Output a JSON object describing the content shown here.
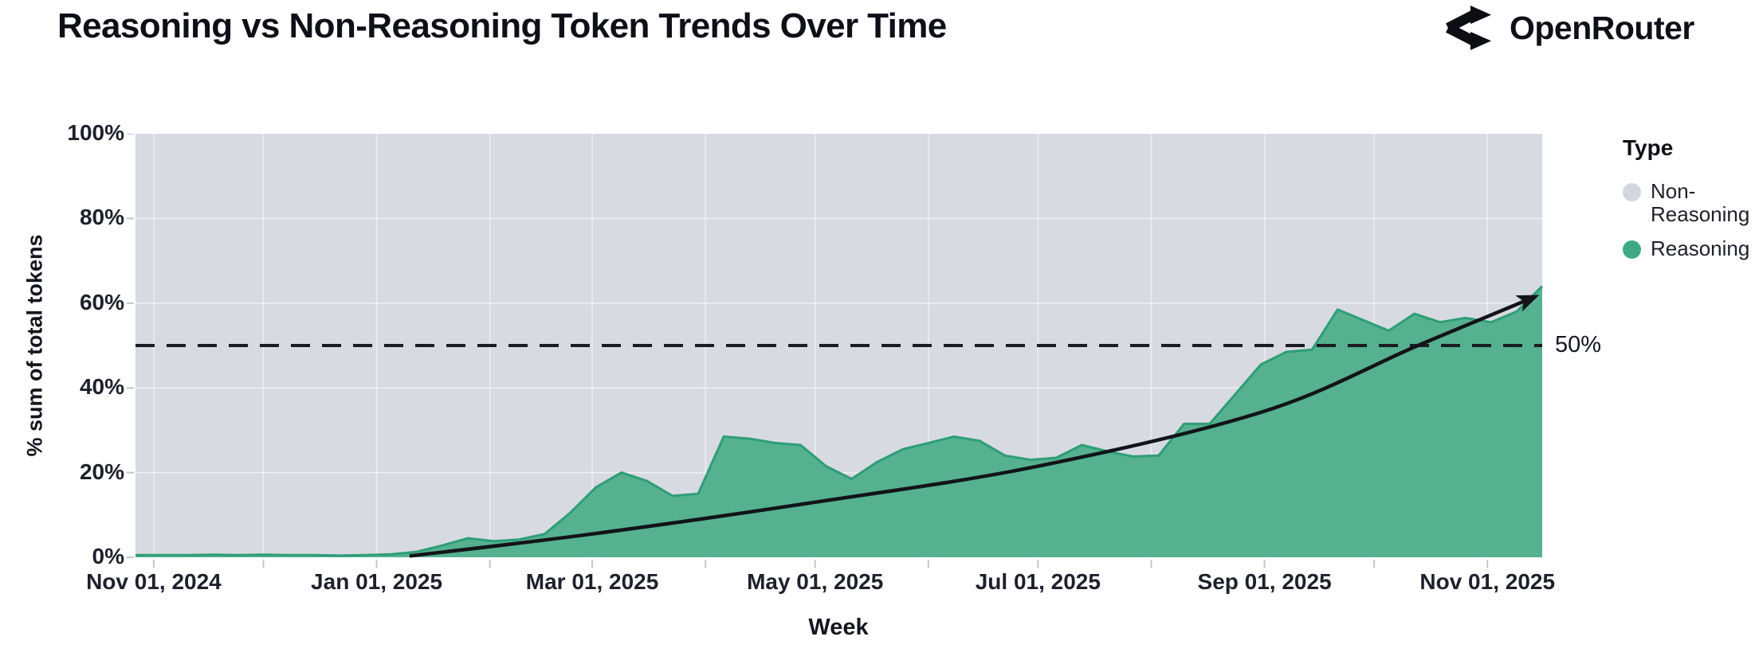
{
  "header": {
    "title": "Reasoning vs Non-Reasoning Token Trends Over Time",
    "brand": "OpenRouter"
  },
  "legend": {
    "title": "Type",
    "items": [
      {
        "label": "Non-Reasoning",
        "color": "#d3d6dd"
      },
      {
        "label": "Reasoning",
        "color": "#3fa984"
      }
    ]
  },
  "chart_data": {
    "type": "area",
    "stacked_percent": true,
    "title": "Reasoning vs Non-Reasoning Token Trends Over Time",
    "xlabel": "Week",
    "ylabel": "% sum of total tokens",
    "ylim": [
      0,
      100
    ],
    "grid": true,
    "legend_position": "right",
    "colors": {
      "plot_background_non_reasoning": "#d8dae2",
      "reasoning_fill": "#55b190",
      "reasoning_stroke": "#2e9e76",
      "gridline": "#ffffff",
      "tick_mark": "#c3c6cf",
      "annotation_line": "#1a1c22",
      "trend_line": "#121419",
      "text": "#14171f"
    },
    "x_domain": [
      "2024-10-27",
      "2025-11-16"
    ],
    "y_ticks": [
      {
        "value": 0,
        "label": "0%"
      },
      {
        "value": 20,
        "label": "20%"
      },
      {
        "value": 40,
        "label": "40%"
      },
      {
        "value": 60,
        "label": "60%"
      },
      {
        "value": 80,
        "label": "80%"
      },
      {
        "value": 100,
        "label": "100%"
      }
    ],
    "x_ticks": [
      {
        "date": "2024-11-01",
        "label": "Nov 01, 2024"
      },
      {
        "date": "2025-01-01",
        "label": "Jan 01, 2025"
      },
      {
        "date": "2025-03-01",
        "label": "Mar 01, 2025"
      },
      {
        "date": "2025-05-01",
        "label": "May 01, 2025"
      },
      {
        "date": "2025-07-01",
        "label": "Jul 01, 2025"
      },
      {
        "date": "2025-09-01",
        "label": "Sep 01, 2025"
      },
      {
        "date": "2025-11-01",
        "label": "Nov 01, 2025"
      }
    ],
    "x_grid_months": [
      "2024-11-01",
      "2024-12-01",
      "2025-01-01",
      "2025-02-01",
      "2025-03-01",
      "2025-04-01",
      "2025-05-01",
      "2025-06-01",
      "2025-07-01",
      "2025-08-01",
      "2025-09-01",
      "2025-10-01",
      "2025-11-01"
    ],
    "series": [
      {
        "name": "Reasoning",
        "unit": "% of total tokens",
        "x": [
          "2024-10-27",
          "2024-11-03",
          "2024-11-10",
          "2024-11-17",
          "2024-11-24",
          "2024-12-01",
          "2024-12-08",
          "2024-12-15",
          "2024-12-22",
          "2024-12-29",
          "2025-01-05",
          "2025-01-12",
          "2025-01-19",
          "2025-01-26",
          "2025-02-02",
          "2025-02-09",
          "2025-02-16",
          "2025-02-23",
          "2025-03-02",
          "2025-03-09",
          "2025-03-16",
          "2025-03-23",
          "2025-03-30",
          "2025-04-06",
          "2025-04-13",
          "2025-04-20",
          "2025-04-27",
          "2025-05-04",
          "2025-05-11",
          "2025-05-18",
          "2025-05-25",
          "2025-06-01",
          "2025-06-08",
          "2025-06-15",
          "2025-06-22",
          "2025-06-29",
          "2025-07-06",
          "2025-07-13",
          "2025-07-20",
          "2025-07-27",
          "2025-08-03",
          "2025-08-10",
          "2025-08-17",
          "2025-08-24",
          "2025-08-31",
          "2025-09-07",
          "2025-09-14",
          "2025-09-21",
          "2025-09-28",
          "2025-10-05",
          "2025-10-12",
          "2025-10-19",
          "2025-10-26",
          "2025-11-02",
          "2025-11-09",
          "2025-11-16"
        ],
        "values": [
          0.5,
          0.5,
          0.5,
          0.6,
          0.5,
          0.6,
          0.5,
          0.5,
          0.4,
          0.5,
          0.7,
          1.3,
          2.8,
          4.5,
          3.8,
          4.2,
          5.5,
          10.5,
          16.5,
          20,
          18,
          14.5,
          15,
          28.5,
          28,
          27,
          26.5,
          21.5,
          18.5,
          22.5,
          25.5,
          27,
          28.5,
          27.5,
          24,
          23,
          23.5,
          26.5,
          25,
          23.8,
          24,
          31.5,
          31.5,
          38.5,
          45.5,
          48.5,
          49,
          58.5,
          56,
          53.5,
          57.5,
          55.5,
          56.5,
          55.5,
          58,
          64
        ]
      },
      {
        "name": "Non-Reasoning",
        "unit": "% of total tokens",
        "values_note": "remainder of stacked 100% area: 100 minus Reasoning value each week"
      }
    ],
    "annotations": {
      "fifty_line": {
        "y": 50,
        "label": "50%",
        "style": "dashed"
      },
      "trend_arrow": {
        "description": "smooth black trend curve ending in arrowhead",
        "points": [
          [
            "2025-01-10",
            0.3
          ],
          [
            "2025-03-01",
            5.5
          ],
          [
            "2025-05-01",
            13
          ],
          [
            "2025-07-01",
            21.5
          ],
          [
            "2025-09-01",
            34.5
          ],
          [
            "2025-10-13",
            50
          ],
          [
            "2025-11-14",
            61.5
          ]
        ]
      }
    }
  }
}
